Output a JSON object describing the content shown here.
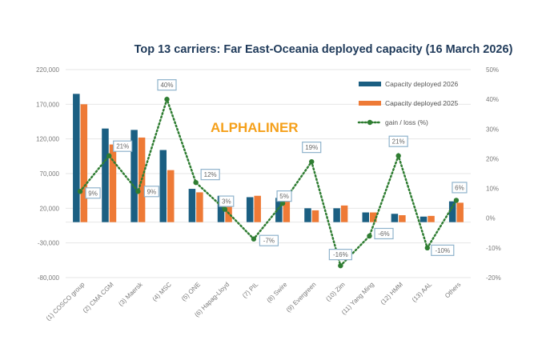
{
  "watermark": "ALPHALINER",
  "colors": {
    "series_2026": "#1b5f82",
    "series_2025": "#ee7a36",
    "gain_line": "#2f7d32",
    "label_border": "#8fb3cc",
    "title": "#1f3a5a"
  },
  "chart_data": {
    "type": "bar",
    "title": "Top 13 carriers:  Far East-Oceania deployed capacity (16 March 2026)",
    "xlabel": "",
    "ylabel": "",
    "y2label": "",
    "grid": true,
    "legend_position": "top-right",
    "categories": [
      "(1) COSCO group",
      "(2) CMA CGM",
      "(3) Maersk",
      "(4) MSC",
      "(5) ONE",
      "(6) Hapag-Lloyd",
      "(7) PIL",
      "(8) Swire",
      "(9) Evergreen",
      "(10) Zim",
      "(11) Yang Ming",
      "(12) HMM",
      "(13) AAL",
      "Others"
    ],
    "series": [
      {
        "name": "Capacity deployed 2026",
        "type": "bar",
        "axis": "left",
        "values": [
          185000,
          135000,
          133000,
          104000,
          48000,
          38000,
          36000,
          35000,
          20000,
          20000,
          14000,
          12000,
          8000,
          30000
        ]
      },
      {
        "name": "Capacity deployed 2025",
        "type": "bar",
        "axis": "left",
        "values": [
          170000,
          112000,
          122000,
          75000,
          43000,
          38000,
          38000,
          34000,
          17000,
          24000,
          14000,
          10000,
          9000,
          28000
        ]
      },
      {
        "name": "gain / loss (%)",
        "type": "line",
        "axis": "right",
        "values": [
          9,
          21,
          9,
          40,
          12,
          3,
          -7,
          5,
          19,
          -16,
          -6,
          21,
          -10,
          6
        ],
        "labels": [
          "9%",
          "21%",
          "9%",
          "40%",
          "12%",
          "3%",
          "-7%",
          "5%",
          "19%",
          "-16%",
          "-6%",
          "21%",
          "-10%",
          "6%"
        ]
      }
    ],
    "ylim": [
      -80000,
      220000
    ],
    "yticks": [
      220000,
      170000,
      120000,
      70000,
      20000,
      -30000,
      -80000
    ],
    "ytick_labels": [
      "220,000",
      "170,000",
      "120,000",
      "70,000",
      "20,000",
      "-30,000",
      "-80,000"
    ],
    "y2lim": [
      -20,
      50
    ],
    "y2ticks": [
      50,
      40,
      30,
      20,
      10,
      0,
      -10,
      -20
    ],
    "y2tick_labels": [
      "50%",
      "40%",
      "30%",
      "20%",
      "10%",
      "0%",
      "-10%",
      "-20%"
    ]
  }
}
